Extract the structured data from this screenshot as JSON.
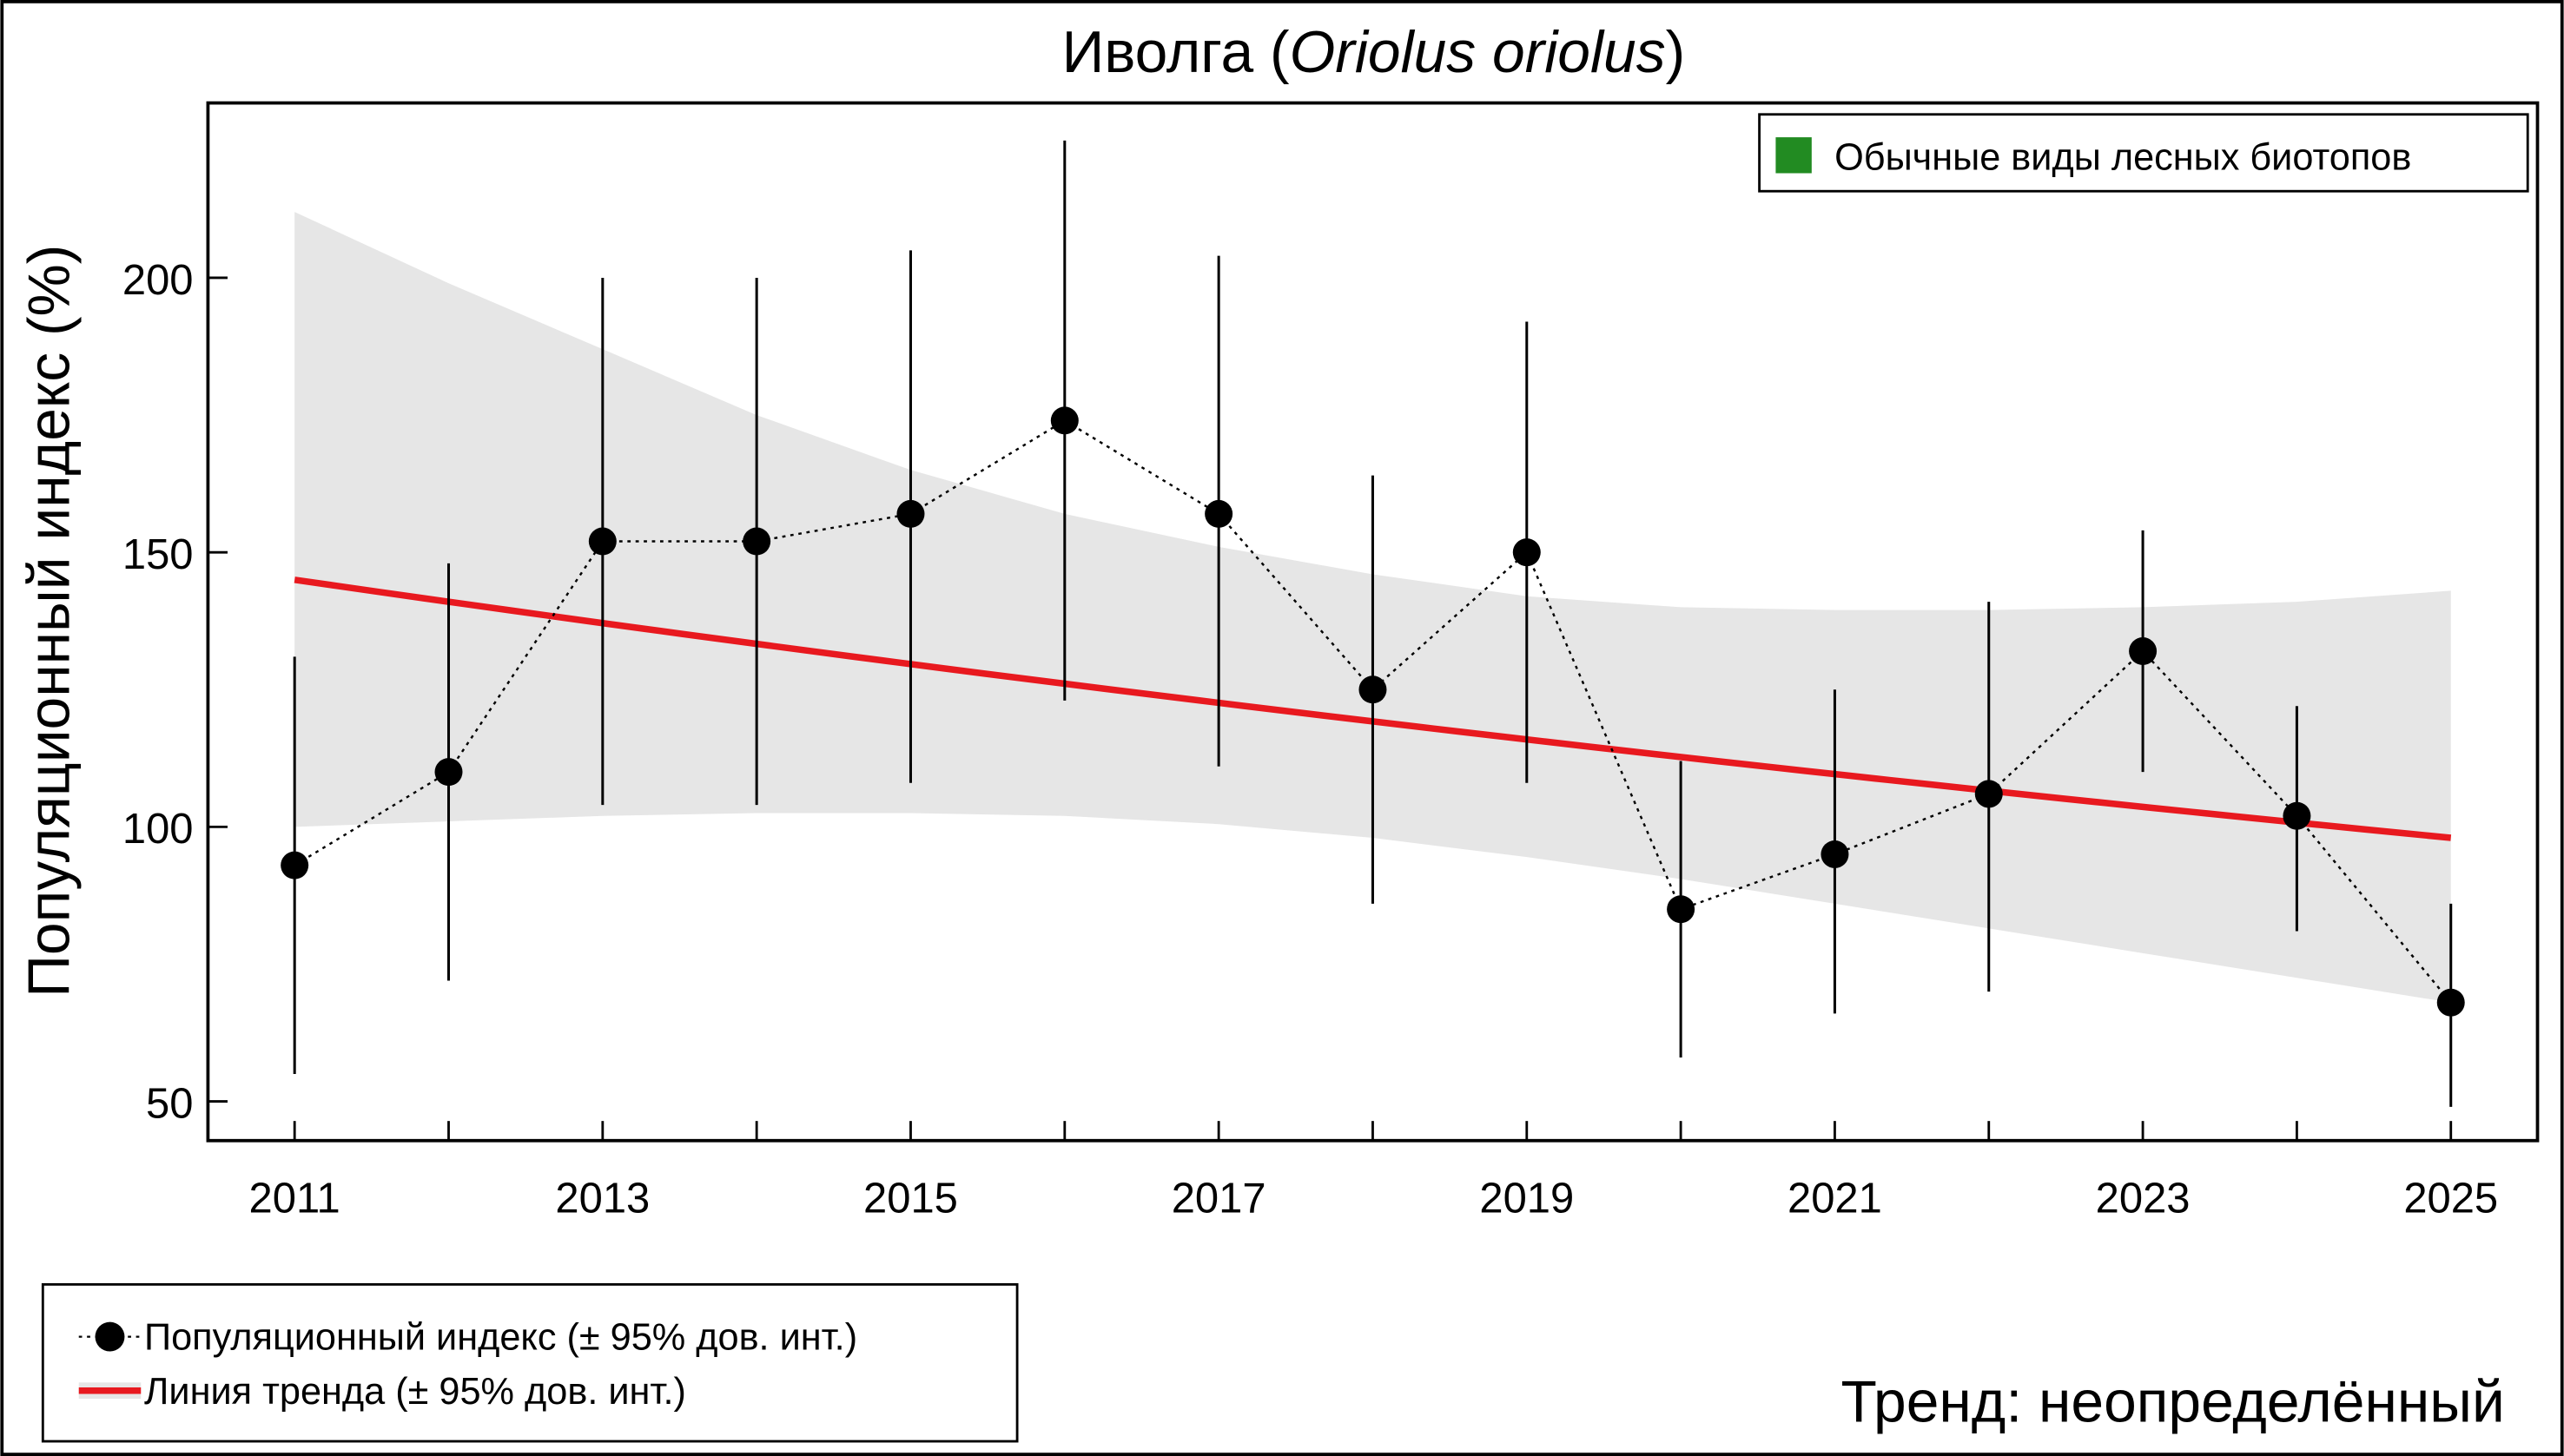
{
  "chart_data": {
    "type": "line",
    "title_main": "Иволга (",
    "title_italic": "Oriolus oriolus",
    "title_close": ")",
    "xlabel": "",
    "ylabel": "Популяционный индекс (%)",
    "xlim": [
      2010.5,
      2025.7
    ],
    "ylim": [
      42,
      232
    ],
    "x_ticks": [
      2011,
      2012,
      2013,
      2014,
      2015,
      2016,
      2017,
      2018,
      2019,
      2020,
      2021,
      2022,
      2023,
      2024,
      2025
    ],
    "x_tick_labels": [
      "2011",
      "2013",
      "2015",
      "2017",
      "2019",
      "2021",
      "2023",
      "2025"
    ],
    "y_ticks": [
      50,
      100,
      150,
      200
    ],
    "y_tick_labels": [
      "50",
      "100",
      "150",
      "200"
    ],
    "grid": false,
    "colors": {
      "trend": "#e8191f",
      "band": "#e6e6e6",
      "points": "#000000",
      "group": "#228b22"
    },
    "series": [
      {
        "name": "Популяционный индекс (± 95% дов. инт.)",
        "x": [
          2011,
          2012,
          2013,
          2014,
          2015,
          2016,
          2017,
          2018,
          2019,
          2020,
          2021,
          2022,
          2023,
          2024,
          2025
        ],
        "y": [
          93,
          110,
          152,
          152,
          157,
          174,
          157,
          125,
          150,
          85,
          95,
          106,
          132,
          102,
          68
        ],
        "ci_low": [
          55,
          72,
          104,
          104,
          108,
          123,
          111,
          86,
          108,
          58,
          66,
          70,
          110,
          81,
          49
        ],
        "ci_high": [
          131,
          148,
          200,
          200,
          205,
          225,
          204,
          164,
          192,
          112,
          125,
          141,
          154,
          122,
          86
        ]
      },
      {
        "name": "Линия тренда (± 95% дов. инт.)",
        "x": [
          2011,
          2012,
          2013,
          2014,
          2015,
          2016,
          2017,
          2018,
          2019,
          2020,
          2021,
          2022,
          2023,
          2024,
          2025
        ],
        "trend_start": 145,
        "trend_end": 98,
        "band_high": [
          212,
          199,
          187,
          175,
          165,
          157,
          151,
          146,
          142,
          140,
          139.5,
          139.5,
          140,
          141,
          143
        ],
        "band_low": [
          100,
          101,
          102,
          102.5,
          102.5,
          102,
          100.5,
          98,
          94.5,
          90.5,
          86,
          81.5,
          77,
          72.5,
          68
        ]
      }
    ],
    "group_legend": "Обычные виды лесных биотопов",
    "legend": [
      "Популяционный индекс (± 95% дов. инт.)",
      "Линия тренда (± 95% дов. инт.)"
    ],
    "legend_placement": "bottom-left",
    "annotation": "Тренд: неопределённый"
  }
}
